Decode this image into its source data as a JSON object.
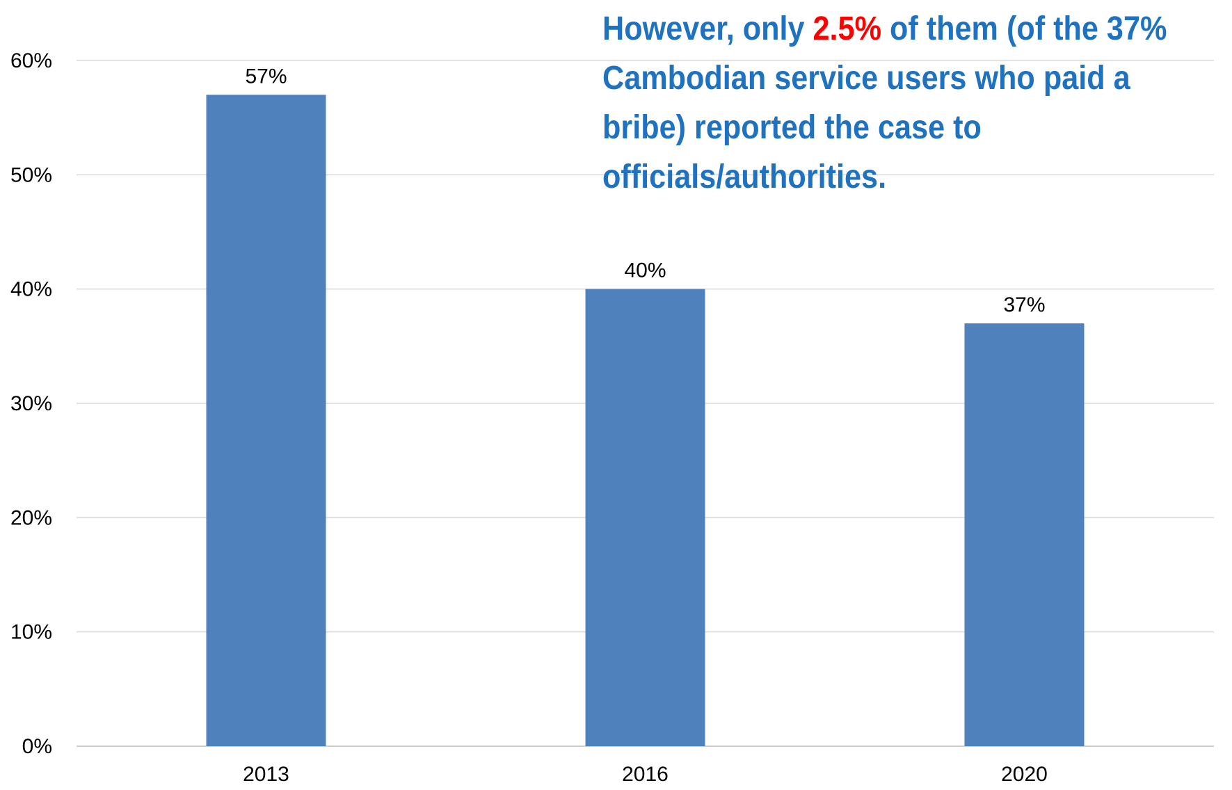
{
  "annotation": {
    "line1_before": "However, only ",
    "line1_highlight": "2.5%",
    "line1_after": " of them (of the 37%",
    "line2": "Cambodian service users who paid a",
    "line3": "bribe) reported the case to",
    "line4": "officials/authorities.",
    "text_color": "#1f72c0",
    "highlight_color": "#ff0000"
  },
  "chart_data": {
    "type": "bar",
    "categories": [
      "2013",
      "2016",
      "2020"
    ],
    "values": [
      57,
      40,
      37
    ],
    "data_labels": [
      "57%",
      "40%",
      "37%"
    ],
    "ylim": [
      0,
      60
    ],
    "yticks": [
      0,
      10,
      20,
      30,
      40,
      50,
      60
    ],
    "ytick_labels": [
      "0%",
      "10%",
      "20%",
      "30%",
      "40%",
      "50%",
      "60%"
    ],
    "grid": true,
    "bar_color": "#4f81bd",
    "gridline_color": "#d9d9d9"
  }
}
